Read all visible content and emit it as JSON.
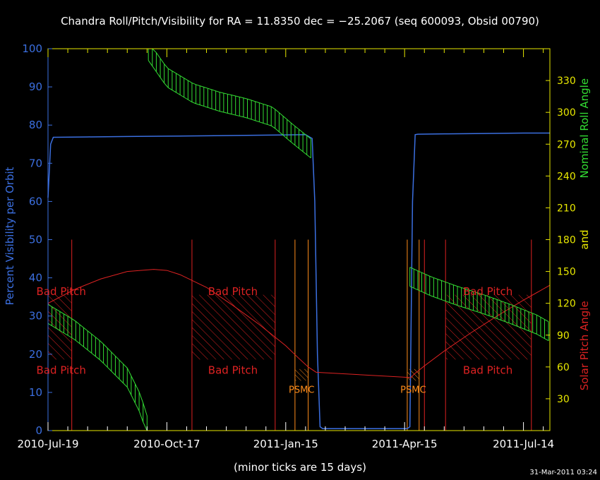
{
  "chart_data": {
    "type": "line",
    "title": "Chandra Roll/Pitch/Visibility for RA = 11.8350 dec = −25.2067 (seq 600093, Obsid 00790)",
    "x_tick_labels": [
      "2010-Jul-19",
      "2010-Oct-17",
      "2011-Jan-15",
      "2011-Apr-15",
      "2011-Jul-14"
    ],
    "x_range_days": [
      0,
      380
    ],
    "x_tick_days": [
      0,
      90,
      180,
      270,
      360
    ],
    "x_note": "(minor ticks are 15 days)",
    "left_axis": {
      "label": "Percent Visibility per Orbit",
      "range": [
        0,
        100
      ],
      "ticks": [
        "0",
        "10",
        "20",
        "30",
        "40",
        "50",
        "60",
        "70",
        "80",
        "90",
        "100"
      ]
    },
    "right_axis": {
      "label_roll": "Nominal Roll Angle",
      "label_and": "and",
      "label_pitch": "Solar Pitch Angle",
      "range": [
        0,
        360
      ],
      "ticks": [
        "30",
        "60",
        "90",
        "120",
        "150",
        "180",
        "210",
        "240",
        "270",
        "300",
        "330"
      ]
    },
    "series": [
      {
        "name": "Percent Visibility per Orbit",
        "color": "#3b6fe0",
        "x": [
          0,
          2,
          4,
          30,
          60,
          90,
          120,
          150,
          175,
          195,
          200,
          202,
          204,
          206,
          208,
          260,
          272,
          274,
          276,
          278,
          280,
          300,
          330,
          360,
          380
        ],
        "y": [
          61,
          75,
          76.8,
          76.9,
          77.0,
          77.1,
          77.2,
          77.3,
          77.4,
          77.5,
          76.5,
          60,
          20,
          1,
          0.5,
          0.5,
          0.5,
          1,
          60,
          77.5,
          77.6,
          77.7,
          77.8,
          77.9,
          77.9
        ]
      },
      {
        "name": "Solar Pitch Angle",
        "color": "#dd2222",
        "x": [
          0,
          20,
          40,
          60,
          80,
          90,
          100,
          120,
          140,
          160,
          180,
          190,
          197,
          203,
          275,
          277,
          285,
          300,
          320,
          340,
          360,
          380
        ],
        "y": [
          120,
          133,
          143,
          150,
          152,
          151,
          147,
          135,
          118,
          100,
          80,
          68,
          60,
          55,
          50,
          53,
          61,
          75,
          92,
          108,
          123,
          137
        ]
      },
      {
        "name": "Nominal Roll Angle",
        "color": "#33dd33",
        "segments": [
          {
            "x": [
              0,
              20,
              40,
              60,
              70,
              75
            ],
            "y": [
              110,
              95,
              75,
              50,
              25,
              5
            ]
          },
          {
            "x": [
              76,
              90,
              110,
              130,
              150,
              170,
              185,
              200
            ],
            "y": [
              358,
              333,
              318,
              310,
              304,
              296,
              280,
              265
            ]
          },
          {
            "x": [
              274,
              290,
              310,
              330,
              350,
              370,
              380
            ],
            "y": [
              145,
              136,
              127,
              119,
              110,
              100,
              93
            ]
          }
        ],
        "bar_half_height_deg": 9,
        "bar_spacing_days": 3
      }
    ],
    "bad_pitch_regions": [
      {
        "x": [
          0,
          18
        ],
        "y_deg": [
          67,
          128
        ]
      },
      {
        "x": [
          109,
          172
        ],
        "y_deg": [
          67,
          128
        ]
      },
      {
        "x": [
          301,
          366
        ],
        "y_deg": [
          67,
          128
        ]
      }
    ],
    "bad_pitch_label": "Bad Pitch",
    "bad_pitch_label_positions": [
      {
        "x": 10,
        "y_deg": 131
      },
      {
        "x": 10,
        "y_deg": 57
      },
      {
        "x": 140,
        "y_deg": 131
      },
      {
        "x": 140,
        "y_deg": 57
      },
      {
        "x": 333,
        "y_deg": 131
      },
      {
        "x": 333,
        "y_deg": 57
      }
    ],
    "red_vlines_days": [
      18,
      109,
      172,
      285,
      301,
      366
    ],
    "psmc_regions": [
      {
        "x": [
          187,
          197
        ],
        "y_deg": [
          47,
          58
        ]
      },
      {
        "x": [
          272,
          281
        ],
        "y_deg": [
          47,
          58
        ]
      }
    ],
    "psmc_label": "PSMC",
    "orange_vlines_days": [
      187,
      197,
      272,
      281
    ],
    "grid": false,
    "legend": "none"
  },
  "footer": {
    "timestamp": "31-Mar-2011 03:24"
  }
}
